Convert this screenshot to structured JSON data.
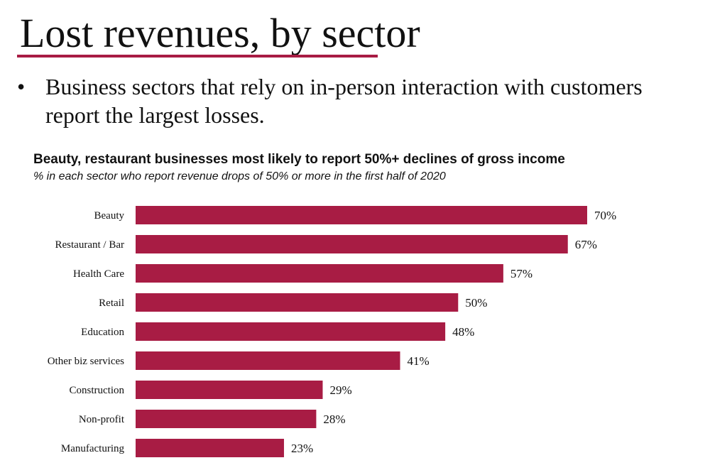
{
  "slide": {
    "title": "Lost revenues, by sector",
    "bullet_symbol": "•",
    "bullet": "Business sectors that rely on in-person interaction with customers report the largest losses."
  },
  "colors": {
    "accent": "#a81c44",
    "bar": "#a81c44"
  },
  "chart_data": {
    "type": "bar",
    "orientation": "horizontal",
    "title": "Beauty, restaurant businesses most likely to report 50%+ declines of gross income",
    "subtitle": "% in each sector who report revenue drops of 50% or more in the first half of 2020",
    "categories": [
      "Beauty",
      "Restaurant / Bar",
      "Health Care",
      "Retail",
      "Education",
      "Other biz services",
      "Construction",
      "Non-profit",
      "Manufacturing"
    ],
    "values": [
      70,
      67,
      57,
      50,
      48,
      41,
      29,
      28,
      23
    ],
    "value_labels": [
      "70%",
      "67%",
      "57%",
      "50%",
      "48%",
      "41%",
      "29%",
      "28%",
      "23%"
    ],
    "unit": "%",
    "xlim": [
      0,
      70
    ],
    "grid": false,
    "legend": "none"
  }
}
